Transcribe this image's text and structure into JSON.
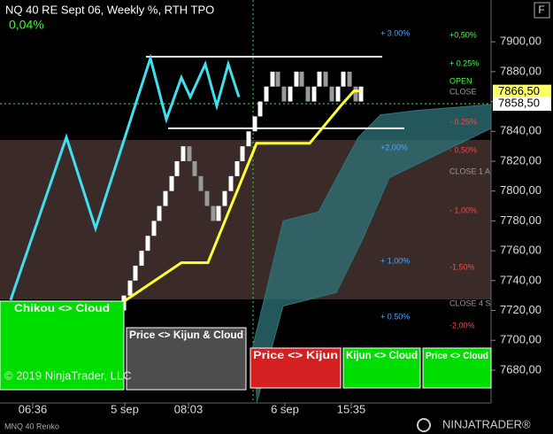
{
  "chart_data": {
    "type": "renko",
    "title": "NQ 40 RE Sept 06, Weekly %, RTH TPO",
    "change": "0,04%",
    "instrument": "MNQ 40 Renko",
    "copyright": "© 2019 NinjaTrader, LLC",
    "logo": "NINJATRADER®",
    "button": "F",
    "ylim": [
      7658,
      7928
    ],
    "yticks": [
      {
        "value": 7680,
        "label": "7680,00"
      },
      {
        "value": 7700,
        "label": "7700,00"
      },
      {
        "value": 7720,
        "label": "7720,00"
      },
      {
        "value": 7740,
        "label": "7740,00"
      },
      {
        "value": 7760,
        "label": "7760,00"
      },
      {
        "value": 7780,
        "label": "7780,00"
      },
      {
        "value": 7800,
        "label": "7800,00"
      },
      {
        "value": 7820,
        "label": "7820,00"
      },
      {
        "value": 7840,
        "label": "7840,00"
      },
      {
        "value": 7860,
        "label": "7860,00"
      },
      {
        "value": 7880,
        "label": "7880,00"
      },
      {
        "value": 7900,
        "label": "7900,00"
      }
    ],
    "xlim": [
      0,
      555
    ],
    "xticks": [
      {
        "value": 37,
        "label": "06:36"
      },
      {
        "value": 141,
        "label": "5 sep"
      },
      {
        "value": 213,
        "label": "08:03"
      },
      {
        "value": 322,
        "label": "6 sep"
      },
      {
        "value": 397,
        "label": "15:35"
      }
    ],
    "bricks": {
      "x": [
        140,
        147,
        153,
        160,
        167,
        174,
        180,
        187,
        194,
        200,
        207,
        214,
        220,
        227,
        234,
        241,
        247,
        254,
        261,
        268,
        274,
        281,
        288,
        294,
        301,
        308,
        314,
        321,
        328,
        335,
        341,
        348,
        355,
        361,
        368,
        375,
        382,
        388,
        395,
        402,
        408
      ],
      "open": [
        7720,
        7730,
        7740,
        7750,
        7760,
        7770,
        7780,
        7790,
        7800,
        7810,
        7820,
        7830,
        7820,
        7810,
        7800,
        7790,
        7780,
        7790,
        7800,
        7810,
        7820,
        7830,
        7840,
        7850,
        7860,
        7870,
        7880,
        7870,
        7860,
        7870,
        7880,
        7870,
        7860,
        7870,
        7880,
        7870,
        7860,
        7870,
        7880,
        7870,
        7860
      ],
      "close": [
        7730,
        7740,
        7750,
        7760,
        7770,
        7780,
        7790,
        7800,
        7810,
        7820,
        7830,
        7820,
        7810,
        7800,
        7790,
        7780,
        7790,
        7800,
        7810,
        7820,
        7830,
        7840,
        7850,
        7860,
        7870,
        7880,
        7870,
        7860,
        7870,
        7880,
        7870,
        7860,
        7870,
        7880,
        7870,
        7860,
        7870,
        7880,
        7870,
        7860,
        7870
      ],
      "up_color": "#ffffff",
      "down_color": "#9a9a9a"
    },
    "series": [
      {
        "name": "Chikou",
        "color": "#3fe0f0",
        "x": [
          12,
          75,
          108,
          170,
          188,
          205,
          215,
          232,
          245,
          258,
          270
        ],
        "values": [
          7727,
          7836,
          7775,
          7889,
          7848,
          7876,
          7863,
          7885,
          7857,
          7885,
          7863
        ]
      },
      {
        "name": "Kijun",
        "color": "#ffff33",
        "x": [
          140,
          205,
          235,
          290,
          350,
          385,
          400,
          408
        ],
        "values": [
          7726,
          7752,
          7752,
          7832,
          7832,
          7857,
          7867,
          7867
        ]
      }
    ],
    "cloud": {
      "color": "#2f7479",
      "upper": {
        "x": [
          285,
          320,
          360,
          405,
          430,
          470,
          555
        ],
        "values": [
          7694,
          7780,
          7786,
          7836,
          7851,
          7854,
          7858
        ]
      },
      "lower": {
        "x": [
          290,
          320,
          380,
          410,
          440,
          555
        ],
        "values": [
          7658,
          7723,
          7732,
          7768,
          7809,
          7842
        ]
      }
    },
    "levels": [
      7890,
      7842
    ],
    "last_price": 7858.5,
    "price_markers": [
      {
        "value": 7866.5,
        "label": "7866,50",
        "color": "#ffff66"
      },
      {
        "value": 7858.5,
        "label": "7858,50",
        "color": "#ffffff"
      }
    ],
    "annotations": [
      "+ 3.00%",
      "+0,50%",
      "+ 0.25%",
      "OPEN",
      "CLOSE",
      "- 0.25%",
      "+2,00%",
      "- 0,50%",
      "CLOSE 1 A",
      "- 1,00%",
      "+ 1,00%",
      "-1,50%",
      "CLOSE 4 S",
      "+ 0.50%",
      "-2,00%"
    ],
    "signals": [
      {
        "label": "Chikou <> Cloud",
        "color": "#00dd00"
      },
      {
        "label": "Price <> Kijun & Cloud",
        "color": "#808080"
      },
      {
        "label": "Price <> Kijun",
        "color": "#d42020"
      },
      {
        "label": "Kijun <> Cloud",
        "color": "#00dd00"
      },
      {
        "label": "Price <> Cloud",
        "color": "#00dd00"
      }
    ]
  }
}
